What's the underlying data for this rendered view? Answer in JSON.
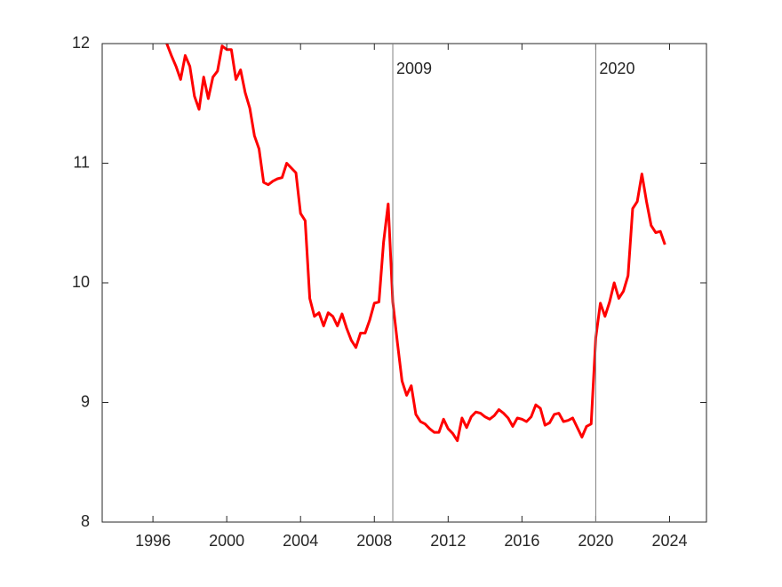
{
  "chart_data": {
    "type": "line",
    "x": [
      1996.75,
      1997,
      1997.25,
      1997.5,
      1997.75,
      1998,
      1998.25,
      1998.5,
      1998.75,
      1999,
      1999.25,
      1999.5,
      1999.75,
      2000,
      2000.25,
      2000.5,
      2000.75,
      2001,
      2001.25,
      2001.5,
      2001.75,
      2002,
      2002.25,
      2002.5,
      2002.75,
      2003,
      2003.25,
      2003.5,
      2003.75,
      2004,
      2004.25,
      2004.5,
      2004.75,
      2005,
      2005.25,
      2005.5,
      2005.75,
      2006,
      2006.25,
      2006.5,
      2006.75,
      2007,
      2007.25,
      2007.5,
      2007.75,
      2008,
      2008.25,
      2008.5,
      2008.75,
      2009,
      2009.25,
      2009.5,
      2009.75,
      2010,
      2010.25,
      2010.5,
      2010.75,
      2011,
      2011.25,
      2011.5,
      2011.75,
      2012,
      2012.25,
      2012.5,
      2012.75,
      2013,
      2013.25,
      2013.5,
      2013.75,
      2014,
      2014.25,
      2014.5,
      2014.75,
      2015,
      2015.25,
      2015.5,
      2015.75,
      2016,
      2016.25,
      2016.5,
      2016.75,
      2017,
      2017.25,
      2017.5,
      2017.75,
      2018,
      2018.25,
      2018.5,
      2018.75,
      2019,
      2019.25,
      2019.5,
      2019.75,
      2020,
      2020.25,
      2020.5,
      2020.75,
      2021,
      2021.25,
      2021.5,
      2021.75,
      2022,
      2022.25,
      2022.5,
      2022.75,
      2023,
      2023.25,
      2023.5,
      2023.75
    ],
    "series": [
      {
        "color": "#ff0000",
        "values": [
          12.0,
          11.9,
          11.81,
          11.7,
          11.9,
          11.81,
          11.56,
          11.45,
          11.72,
          11.54,
          11.72,
          11.77,
          11.98,
          11.95,
          11.95,
          11.7,
          11.78,
          11.59,
          11.46,
          11.23,
          11.12,
          10.84,
          10.82,
          10.85,
          10.87,
          10.88,
          11.0,
          10.96,
          10.92,
          10.58,
          10.52,
          9.87,
          9.72,
          9.75,
          9.64,
          9.75,
          9.72,
          9.64,
          9.74,
          9.62,
          9.52,
          9.46,
          9.58,
          9.58,
          9.69,
          9.83,
          9.84,
          10.34,
          10.66,
          9.84,
          9.5,
          9.18,
          9.06,
          9.14,
          8.9,
          8.84,
          8.82,
          8.78,
          8.75,
          8.75,
          8.86,
          8.78,
          8.74,
          8.68,
          8.87,
          8.79,
          8.88,
          8.92,
          8.91,
          8.88,
          8.86,
          8.89,
          8.94,
          8.91,
          8.87,
          8.8,
          8.87,
          8.86,
          8.84,
          8.88,
          8.98,
          8.95,
          8.81,
          8.83,
          8.9,
          8.91,
          8.84,
          8.85,
          8.87,
          8.79,
          8.71,
          8.8,
          8.82,
          9.54,
          9.83,
          9.72,
          9.84,
          10.0,
          9.87,
          9.93,
          10.06,
          10.62,
          10.68,
          10.91,
          10.68,
          10.48,
          10.42,
          10.43,
          10.32
        ]
      }
    ],
    "xlim": [
      1993.25,
      2026
    ],
    "ylim": [
      8,
      12
    ],
    "xticks": [
      1996,
      2000,
      2004,
      2008,
      2012,
      2016,
      2020,
      2024
    ],
    "yticks": [
      8,
      9,
      10,
      11,
      12
    ],
    "vlines": [
      {
        "x": 2009,
        "label": "2009",
        "color": "#808080"
      },
      {
        "x": 2020,
        "label": "2020",
        "color": "#808080"
      }
    ],
    "grid": false
  }
}
